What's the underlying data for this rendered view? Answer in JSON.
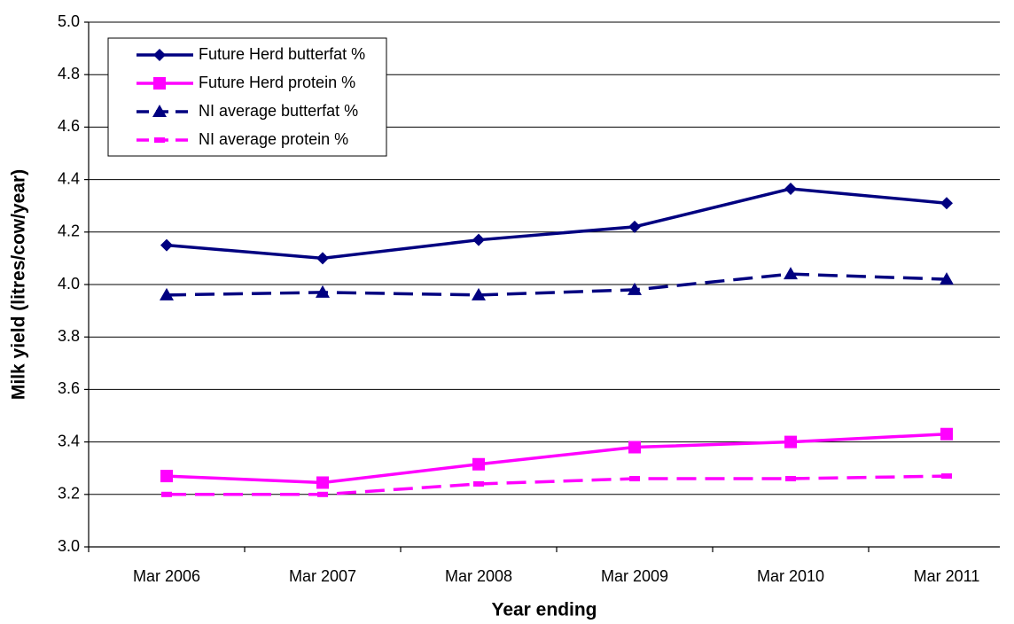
{
  "chart_data": {
    "type": "line",
    "categories": [
      "Mar 2006",
      "Mar 2007",
      "Mar 2008",
      "Mar 2009",
      "Mar 2010",
      "Mar 2011"
    ],
    "x_label": "Year ending",
    "y_label": "Milk yield (litres/cow/year)",
    "ylim": [
      3.0,
      5.0
    ],
    "yticks": [
      {
        "value": 3,
        "label": "3.0"
      },
      3.2,
      3.4,
      3.6,
      3.8,
      {
        "value": 4,
        "label": "4.0"
      },
      4.2,
      4.4,
      4.6,
      4.8,
      {
        "value": 5,
        "label": "5.0"
      }
    ],
    "grid": true,
    "legend": "upper left",
    "series": [
      {
        "name": "Future Herd butterfat %",
        "color": "#000080",
        "marker": "diamond",
        "dashed": false,
        "values": [
          4.15,
          4.1,
          4.17,
          4.22,
          4.365,
          4.31
        ]
      },
      {
        "name": "Future Herd protein %",
        "color": "#ff00ff",
        "marker": "square",
        "dashed": false,
        "values": [
          3.27,
          3.245,
          3.315,
          3.38,
          3.4,
          3.43
        ]
      },
      {
        "name": "NI average butterfat %",
        "color": "#000080",
        "marker": "triangle",
        "dashed": true,
        "values": [
          3.96,
          3.97,
          3.96,
          3.98,
          4.04,
          4.02
        ]
      },
      {
        "name": "NI average protein %",
        "color": "#ff00ff",
        "marker": "dash",
        "dashed": true,
        "values": [
          3.2,
          3.2,
          3.24,
          3.26,
          3.26,
          3.27
        ]
      }
    ]
  }
}
